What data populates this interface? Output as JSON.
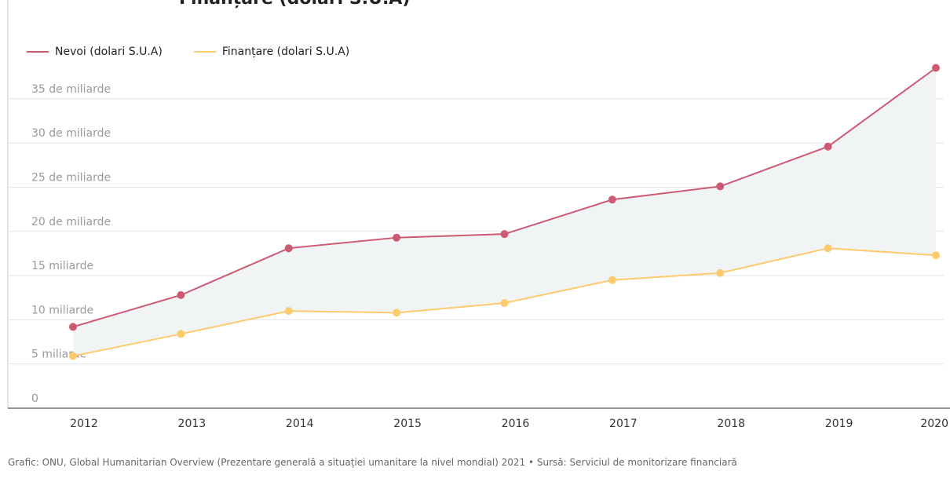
{
  "title_fragment": "Finanțare (dolari S.U.A)",
  "legend": {
    "needs_label": "Nevoi (dolari S.U.A)",
    "funding_label": "Finanțare (dolari S.U.A)"
  },
  "colors": {
    "needs": "#cc5a73",
    "funding": "#fdcb6e",
    "gap_fill": "#f1f4f5",
    "grid": "#e4e4e4",
    "axis": "#555555"
  },
  "chart_data": {
    "type": "line",
    "x": [
      "2012",
      "2013",
      "2014",
      "2015",
      "2016",
      "2017",
      "2018",
      "2019",
      "2020"
    ],
    "series": [
      {
        "name": "Nevoi (dolari S.U.A)",
        "values": [
          9.2,
          12.8,
          18.1,
          19.3,
          19.7,
          23.6,
          25.1,
          29.6,
          38.5
        ]
      },
      {
        "name": "Finanțare (dolari S.U.A)",
        "values": [
          5.9,
          8.4,
          11.0,
          10.8,
          11.9,
          14.5,
          15.3,
          18.1,
          17.3
        ]
      }
    ],
    "ylim": [
      0,
      40
    ],
    "yticks": [
      {
        "value": 0,
        "label": "0"
      },
      {
        "value": 5,
        "label": "5 miliarde"
      },
      {
        "value": 10,
        "label": "10 miliarde"
      },
      {
        "value": 15,
        "label": "15 miliarde"
      },
      {
        "value": 20,
        "label": "20 de miliarde"
      },
      {
        "value": 25,
        "label": "25 de miliarde"
      },
      {
        "value": 30,
        "label": "30 de miliarde"
      },
      {
        "value": 35,
        "label": "35 de miliarde"
      }
    ],
    "grid": true,
    "legend_position": "top-left"
  },
  "footer": {
    "text": "Grafic: ONU, Global Humanitarian Overview (Prezentare generală a situației umanitare la nivel mondial) 2021 • Sursă: Serviciul de monitorizare financiară"
  }
}
